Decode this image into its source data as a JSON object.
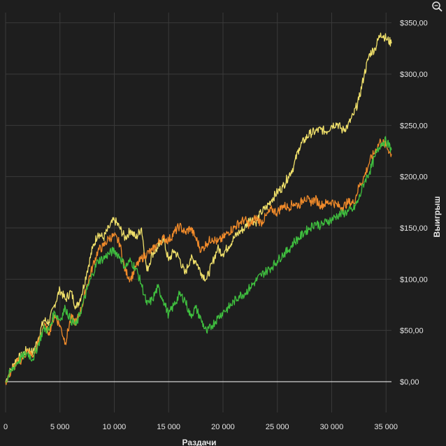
{
  "colors": {
    "background": "#1e1e1e",
    "grid": "#3a3a3a",
    "text": "#e6e6e6",
    "zero_line": "#ffffff"
  },
  "icons": {
    "zoom": "zoom-icon"
  },
  "chart_data": {
    "type": "line",
    "xlabel": "Раздачи",
    "ylabel": "Выигрыш",
    "xlim": [
      0,
      35500
    ],
    "ylim": [
      -30,
      360
    ],
    "x_ticks": [
      0,
      5000,
      10000,
      15000,
      20000,
      25000,
      30000,
      35000
    ],
    "x_tick_labels": [
      "0",
      "5 000",
      "10 000",
      "15 000",
      "20 000",
      "25 000",
      "30 000",
      "35 000"
    ],
    "y_ticks": [
      0,
      50,
      100,
      150,
      200,
      250,
      300,
      350
    ],
    "y_tick_labels": [
      "$0,00",
      "$50,00",
      "$100,00",
      "$150,00",
      "$200,00",
      "$250,00",
      "$300,00",
      "$350,00"
    ],
    "grid": true,
    "legend": "none",
    "series": [
      {
        "color": "#f0e06a",
        "points": [
          [
            0,
            0
          ],
          [
            500,
            12
          ],
          [
            1000,
            22
          ],
          [
            1500,
            25
          ],
          [
            2000,
            32
          ],
          [
            2500,
            28
          ],
          [
            3000,
            42
          ],
          [
            3500,
            60
          ],
          [
            4000,
            58
          ],
          [
            4500,
            75
          ],
          [
            5000,
            90
          ],
          [
            5500,
            80
          ],
          [
            6000,
            88
          ],
          [
            6500,
            72
          ],
          [
            7000,
            85
          ],
          [
            7500,
            108
          ],
          [
            8000,
            130
          ],
          [
            8500,
            145
          ],
          [
            9000,
            140
          ],
          [
            9500,
            150
          ],
          [
            10000,
            158
          ],
          [
            10500,
            150
          ],
          [
            11000,
            140
          ],
          [
            11500,
            148
          ],
          [
            12000,
            140
          ],
          [
            12500,
            150
          ],
          [
            13000,
            108
          ],
          [
            13500,
            125
          ],
          [
            14000,
            130
          ],
          [
            14500,
            140
          ],
          [
            15000,
            118
          ],
          [
            15500,
            128
          ],
          [
            16000,
            120
          ],
          [
            16500,
            105
          ],
          [
            17000,
            120
          ],
          [
            17500,
            118
          ],
          [
            18000,
            106
          ],
          [
            18500,
            100
          ],
          [
            19000,
            115
          ],
          [
            19500,
            130
          ],
          [
            20000,
            125
          ],
          [
            20500,
            132
          ],
          [
            21000,
            140
          ],
          [
            21500,
            146
          ],
          [
            22000,
            150
          ],
          [
            22500,
            160
          ],
          [
            23000,
            155
          ],
          [
            23500,
            165
          ],
          [
            24000,
            170
          ],
          [
            24500,
            178
          ],
          [
            25000,
            185
          ],
          [
            25500,
            190
          ],
          [
            26000,
            200
          ],
          [
            26500,
            210
          ],
          [
            27000,
            228
          ],
          [
            27500,
            236
          ],
          [
            28000,
            242
          ],
          [
            28500,
            244
          ],
          [
            29000,
            246
          ],
          [
            29500,
            244
          ],
          [
            30000,
            250
          ],
          [
            30500,
            252
          ],
          [
            31000,
            245
          ],
          [
            31500,
            250
          ],
          [
            32000,
            260
          ],
          [
            32500,
            275
          ],
          [
            33000,
            300
          ],
          [
            33500,
            320
          ],
          [
            34000,
            325
          ],
          [
            34500,
            340
          ],
          [
            35000,
            335
          ],
          [
            35500,
            330
          ]
        ]
      },
      {
        "color": "#f08a2a",
        "points": [
          [
            0,
            0
          ],
          [
            500,
            10
          ],
          [
            1000,
            18
          ],
          [
            1500,
            22
          ],
          [
            2000,
            30
          ],
          [
            2500,
            24
          ],
          [
            3000,
            38
          ],
          [
            3500,
            55
          ],
          [
            4000,
            48
          ],
          [
            4500,
            65
          ],
          [
            5000,
            55
          ],
          [
            5500,
            38
          ],
          [
            6000,
            62
          ],
          [
            6500,
            58
          ],
          [
            7000,
            72
          ],
          [
            7500,
            95
          ],
          [
            8000,
            112
          ],
          [
            8500,
            128
          ],
          [
            9000,
            132
          ],
          [
            9500,
            140
          ],
          [
            10000,
            142
          ],
          [
            10500,
            135
          ],
          [
            11000,
            108
          ],
          [
            11500,
            100
          ],
          [
            12000,
            112
          ],
          [
            12500,
            120
          ],
          [
            13000,
            125
          ],
          [
            13500,
            128
          ],
          [
            14000,
            135
          ],
          [
            14500,
            140
          ],
          [
            15000,
            138
          ],
          [
            15500,
            145
          ],
          [
            16000,
            152
          ],
          [
            16500,
            145
          ],
          [
            17000,
            150
          ],
          [
            17500,
            140
          ],
          [
            18000,
            128
          ],
          [
            18500,
            135
          ],
          [
            19000,
            140
          ],
          [
            19500,
            136
          ],
          [
            20000,
            140
          ],
          [
            20500,
            146
          ],
          [
            21000,
            150
          ],
          [
            21500,
            155
          ],
          [
            22000,
            158
          ],
          [
            22500,
            152
          ],
          [
            23000,
            160
          ],
          [
            23500,
            155
          ],
          [
            24000,
            162
          ],
          [
            24500,
            168
          ],
          [
            25000,
            165
          ],
          [
            25500,
            172
          ],
          [
            26000,
            170
          ],
          [
            26500,
            174
          ],
          [
            27000,
            172
          ],
          [
            27500,
            180
          ],
          [
            28000,
            175
          ],
          [
            28500,
            178
          ],
          [
            29000,
            172
          ],
          [
            29500,
            174
          ],
          [
            30000,
            176
          ],
          [
            30500,
            172
          ],
          [
            31000,
            170
          ],
          [
            31500,
            175
          ],
          [
            32000,
            174
          ],
          [
            32500,
            190
          ],
          [
            33000,
            200
          ],
          [
            33500,
            215
          ],
          [
            34000,
            225
          ],
          [
            34500,
            235
          ],
          [
            35000,
            230
          ],
          [
            35500,
            222
          ]
        ]
      },
      {
        "color": "#3fbf3f",
        "points": [
          [
            0,
            0
          ],
          [
            500,
            10
          ],
          [
            1000,
            18
          ],
          [
            1500,
            24
          ],
          [
            2000,
            28
          ],
          [
            2500,
            22
          ],
          [
            3000,
            36
          ],
          [
            3500,
            52
          ],
          [
            4000,
            50
          ],
          [
            4500,
            68
          ],
          [
            5000,
            60
          ],
          [
            5500,
            72
          ],
          [
            6000,
            60
          ],
          [
            6500,
            55
          ],
          [
            7000,
            72
          ],
          [
            7500,
            90
          ],
          [
            8000,
            105
          ],
          [
            8500,
            118
          ],
          [
            9000,
            120
          ],
          [
            9500,
            125
          ],
          [
            10000,
            128
          ],
          [
            10500,
            122
          ],
          [
            11000,
            112
          ],
          [
            11500,
            118
          ],
          [
            12000,
            110
          ],
          [
            12500,
            95
          ],
          [
            13000,
            75
          ],
          [
            13500,
            80
          ],
          [
            14000,
            92
          ],
          [
            14500,
            80
          ],
          [
            15000,
            65
          ],
          [
            15500,
            75
          ],
          [
            16000,
            85
          ],
          [
            16500,
            80
          ],
          [
            17000,
            64
          ],
          [
            17500,
            72
          ],
          [
            18000,
            60
          ],
          [
            18500,
            48
          ],
          [
            19000,
            55
          ],
          [
            19500,
            62
          ],
          [
            20000,
            68
          ],
          [
            20500,
            72
          ],
          [
            21000,
            78
          ],
          [
            21500,
            84
          ],
          [
            22000,
            86
          ],
          [
            22500,
            92
          ],
          [
            23000,
            98
          ],
          [
            23500,
            104
          ],
          [
            24000,
            108
          ],
          [
            24500,
            112
          ],
          [
            25000,
            118
          ],
          [
            25500,
            124
          ],
          [
            26000,
            128
          ],
          [
            26500,
            136
          ],
          [
            27000,
            140
          ],
          [
            27500,
            146
          ],
          [
            28000,
            150
          ],
          [
            28500,
            155
          ],
          [
            29000,
            152
          ],
          [
            29500,
            156
          ],
          [
            30000,
            158
          ],
          [
            30500,
            162
          ],
          [
            31000,
            164
          ],
          [
            31500,
            166
          ],
          [
            32000,
            168
          ],
          [
            32500,
            178
          ],
          [
            33000,
            195
          ],
          [
            33500,
            205
          ],
          [
            34000,
            220
          ],
          [
            34500,
            232
          ],
          [
            35000,
            235
          ],
          [
            35500,
            226
          ]
        ]
      }
    ]
  }
}
